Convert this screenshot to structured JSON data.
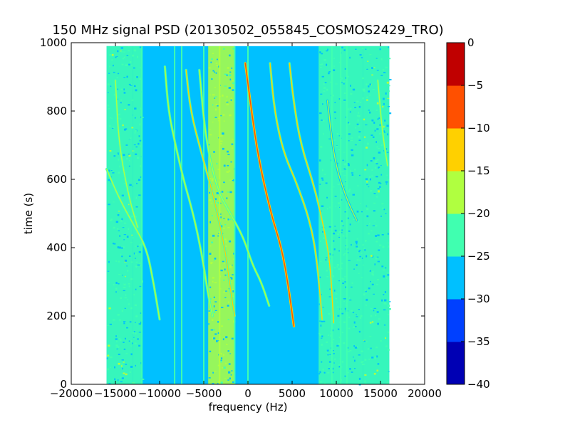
{
  "chart_data": {
    "type": "heatmap",
    "title": "150 MHz signal PSD (20130502_055845_COSMOS2429_TRO)",
    "xlabel": "frequency (Hz)",
    "ylabel": "time (s)",
    "xlim": [
      -20000,
      20000
    ],
    "ylim": [
      0,
      1000
    ],
    "xticks": [
      -20000,
      -15000,
      -10000,
      -5000,
      0,
      5000,
      10000,
      15000,
      20000
    ],
    "xtick_labels": [
      "−20000",
      "−15000",
      "−10000",
      "−5000",
      "0",
      "5000",
      "10000",
      "15000",
      "20000"
    ],
    "yticks": [
      0,
      200,
      400,
      600,
      800,
      1000
    ],
    "ytick_labels": [
      "0",
      "200",
      "400",
      "600",
      "800",
      "1000"
    ],
    "data_extent": {
      "x": [
        -16000,
        16000
      ],
      "y": [
        0,
        990
      ]
    },
    "colorbar": {
      "levels": [
        -40,
        -35,
        -30,
        -25,
        -20,
        -15,
        -10,
        -5,
        0
      ],
      "tick_labels": [
        "−40",
        "−35",
        "−30",
        "−25",
        "−20",
        "−15",
        "−10",
        "−5",
        "0"
      ],
      "colors": [
        "#0000b4",
        "#0040ff",
        "#00c0ff",
        "#40ffb0",
        "#b0ff40",
        "#ffd000",
        "#ff5000",
        "#c00000"
      ]
    },
    "background_level_db": -27,
    "noise_regions": [
      {
        "x": [
          -16000,
          -13000
        ],
        "level_db": -22
      },
      {
        "x": [
          -13000,
          -12000
        ],
        "level_db": -24
      },
      {
        "x": [
          -4500,
          -1500
        ],
        "level_db": -20
      },
      {
        "x": [
          8000,
          13000
        ],
        "level_db": -24
      },
      {
        "x": [
          13000,
          16000
        ],
        "level_db": -22
      }
    ],
    "vertical_lines": [
      {
        "x": -12000,
        "level_db": -22
      },
      {
        "x": -8300,
        "level_db": -22
      },
      {
        "x": -7500,
        "level_db": -22
      },
      {
        "x": -5000,
        "level_db": -22
      },
      {
        "x": -3200,
        "level_db": -20
      },
      {
        "x": -1500,
        "level_db": -22
      },
      {
        "x": 0,
        "level_db": -22
      },
      {
        "x": 9500,
        "level_db": -24
      },
      {
        "x": 10500,
        "level_db": -24
      },
      {
        "x": 11200,
        "level_db": -24
      }
    ],
    "traces": [
      {
        "points": [
          [
            -16000,
            630
          ],
          [
            -14500,
            540
          ],
          [
            -13000,
            470
          ],
          [
            -11500,
            400
          ],
          [
            -10700,
            300
          ],
          [
            -10000,
            190
          ]
        ],
        "level_db": -17
      },
      {
        "points": [
          [
            -15000,
            890
          ],
          [
            -14600,
            700
          ],
          [
            -13500,
            550
          ],
          [
            -12500,
            460
          ]
        ],
        "level_db": -18
      },
      {
        "points": [
          [
            -9400,
            930
          ],
          [
            -9000,
            800
          ],
          [
            -8200,
            700
          ],
          [
            -7300,
            600
          ],
          [
            -6200,
            500
          ],
          [
            -5200,
            380
          ],
          [
            -4500,
            260
          ],
          [
            -4000,
            200
          ]
        ],
        "level_db": -17
      },
      {
        "points": [
          [
            -7000,
            920
          ],
          [
            -6500,
            800
          ],
          [
            -5300,
            680
          ],
          [
            -4000,
            560
          ],
          [
            -3200,
            470
          ],
          [
            -2500,
            380
          ],
          [
            -2000,
            280
          ],
          [
            -1500,
            200
          ]
        ],
        "level_db": -15
      },
      {
        "points": [
          [
            -5500,
            920
          ],
          [
            -4800,
            720
          ],
          [
            -3500,
            570
          ],
          [
            -2000,
            500
          ],
          [
            -500,
            430
          ],
          [
            500,
            350
          ],
          [
            1500,
            300
          ],
          [
            2400,
            230
          ]
        ],
        "level_db": -17
      },
      {
        "points": [
          [
            -300,
            940
          ],
          [
            400,
            800
          ],
          [
            1200,
            660
          ],
          [
            2600,
            500
          ],
          [
            3800,
            400
          ],
          [
            4500,
            300
          ],
          [
            5200,
            170
          ]
        ],
        "level_db": -8
      },
      {
        "points": [
          [
            2500,
            940
          ],
          [
            3000,
            800
          ],
          [
            4000,
            680
          ],
          [
            5500,
            590
          ],
          [
            7000,
            480
          ],
          [
            7800,
            370
          ],
          [
            8400,
            190
          ]
        ],
        "level_db": -15
      },
      {
        "points": [
          [
            4700,
            940
          ],
          [
            5200,
            820
          ],
          [
            6000,
            700
          ],
          [
            7500,
            580
          ],
          [
            8500,
            470
          ],
          [
            9300,
            360
          ],
          [
            9700,
            180
          ]
        ],
        "level_db": -15
      },
      {
        "points": [
          [
            9000,
            830
          ],
          [
            9800,
            650
          ],
          [
            11200,
            540
          ],
          [
            12300,
            480
          ]
        ],
        "level_db": -20
      },
      {
        "points": [
          [
            14700,
            890
          ],
          [
            15200,
            740
          ],
          [
            15800,
            640
          ]
        ],
        "level_db": -18
      }
    ]
  }
}
